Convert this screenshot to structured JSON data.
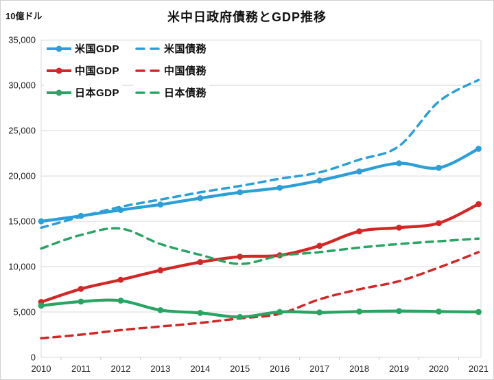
{
  "header": {
    "title": "米中日政府債務とGDP推移",
    "unit_label": "10億ドル"
  },
  "chart_data": {
    "type": "line",
    "title": "米中日政府債務とGDP推移",
    "ylabel": "10億ドル",
    "x": [
      2010,
      2011,
      2012,
      2013,
      2014,
      2015,
      2016,
      2017,
      2018,
      2019,
      2020,
      2021
    ],
    "ylim": [
      0,
      35000
    ],
    "y_ticks": [
      0,
      5000,
      10000,
      15000,
      20000,
      25000,
      30000,
      35000
    ],
    "grid": true,
    "smoothed": true,
    "legend_position": "top-left",
    "series": [
      {
        "name": "us-gdp",
        "label": "米国GDP",
        "color": "#2a9fd8",
        "style": "solid",
        "marker": true,
        "values": [
          15000,
          15600,
          16250,
          16850,
          17550,
          18200,
          18700,
          19500,
          20500,
          21400,
          20900,
          23000
        ]
      },
      {
        "name": "us-debt",
        "label": "米国債務",
        "color": "#2a9fd8",
        "style": "dashed",
        "marker": false,
        "values": [
          14300,
          15500,
          16600,
          17400,
          18200,
          18900,
          19700,
          20400,
          21800,
          23300,
          28200,
          30600
        ]
      },
      {
        "name": "china-gdp",
        "label": "中国GDP",
        "color": "#d32726",
        "style": "solid",
        "marker": true,
        "values": [
          6100,
          7550,
          8550,
          9600,
          10500,
          11100,
          11250,
          12300,
          13900,
          14300,
          14800,
          16900
        ]
      },
      {
        "name": "china-debt",
        "label": "中国債務",
        "color": "#d32726",
        "style": "dashed",
        "marker": false,
        "values": [
          2100,
          2500,
          3000,
          3400,
          3800,
          4300,
          4800,
          6400,
          7500,
          8400,
          9900,
          11600
        ]
      },
      {
        "name": "japan-gdp",
        "label": "日本GDP",
        "color": "#28a463",
        "style": "solid",
        "marker": true,
        "values": [
          5700,
          6150,
          6250,
          5200,
          4900,
          4450,
          5000,
          4950,
          5050,
          5100,
          5050,
          5000
        ]
      },
      {
        "name": "japan-debt",
        "label": "日本債務",
        "color": "#28a463",
        "style": "dashed",
        "marker": false,
        "values": [
          12000,
          13500,
          14200,
          12500,
          11300,
          10300,
          11200,
          11600,
          12100,
          12500,
          12800,
          13100
        ]
      }
    ]
  }
}
